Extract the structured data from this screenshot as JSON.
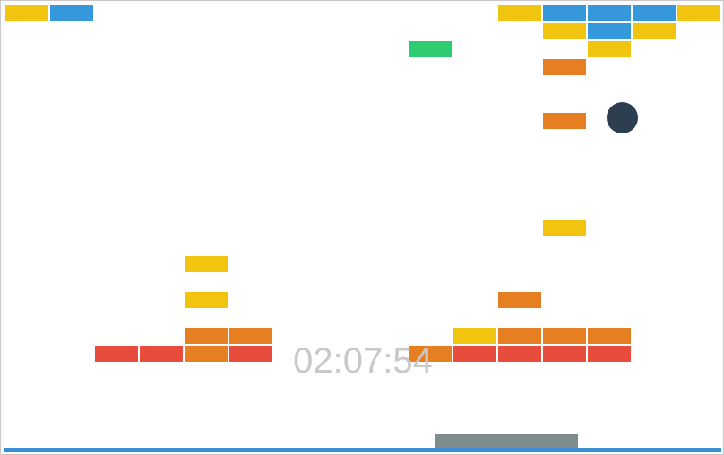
{
  "colors": {
    "yellow": "#f1c40f",
    "blue": "#3498db",
    "green": "#2ecc71",
    "orange": "#e67e22",
    "red": "#e74c3c",
    "ball": "#2c3e50",
    "paddle": "#7f8c8d",
    "floor": "#3b8fd6",
    "timer": "#c9c9c9"
  },
  "timer": "02:07:54",
  "grid": {
    "cols": 16
  },
  "bricks": [
    {
      "row": 0,
      "col": 0,
      "color": "yellow"
    },
    {
      "row": 0,
      "col": 1,
      "color": "blue"
    },
    {
      "row": 0,
      "col": 11,
      "color": "yellow"
    },
    {
      "row": 0,
      "col": 12,
      "color": "blue"
    },
    {
      "row": 0,
      "col": 13,
      "color": "blue"
    },
    {
      "row": 0,
      "col": 14,
      "color": "blue"
    },
    {
      "row": 0,
      "col": 15,
      "color": "yellow"
    },
    {
      "row": 1,
      "col": 12,
      "color": "yellow"
    },
    {
      "row": 1,
      "col": 13,
      "color": "blue"
    },
    {
      "row": 1,
      "col": 14,
      "color": "yellow"
    },
    {
      "row": 2,
      "col": 9,
      "color": "green"
    },
    {
      "row": 2,
      "col": 13,
      "color": "yellow"
    },
    {
      "row": 3,
      "col": 12,
      "color": "orange"
    },
    {
      "row": 6,
      "col": 12,
      "color": "orange"
    },
    {
      "row": 12,
      "col": 12,
      "color": "yellow"
    },
    {
      "row": 14,
      "col": 4,
      "color": "yellow"
    },
    {
      "row": 16,
      "col": 4,
      "color": "yellow"
    },
    {
      "row": 16,
      "col": 11,
      "color": "orange"
    },
    {
      "row": 18,
      "col": 4,
      "color": "orange"
    },
    {
      "row": 18,
      "col": 5,
      "color": "orange"
    },
    {
      "row": 18,
      "col": 10,
      "color": "yellow"
    },
    {
      "row": 18,
      "col": 11,
      "color": "orange"
    },
    {
      "row": 18,
      "col": 12,
      "color": "orange"
    },
    {
      "row": 18,
      "col": 13,
      "color": "orange"
    },
    {
      "row": 19,
      "col": 2,
      "color": "red"
    },
    {
      "row": 19,
      "col": 3,
      "color": "red"
    },
    {
      "row": 19,
      "col": 4,
      "color": "orange"
    },
    {
      "row": 19,
      "col": 5,
      "color": "red"
    },
    {
      "row": 19,
      "col": 9,
      "color": "orange"
    },
    {
      "row": 19,
      "col": 10,
      "color": "red"
    },
    {
      "row": 19,
      "col": 11,
      "color": "red"
    },
    {
      "row": 19,
      "col": 12,
      "color": "red"
    },
    {
      "row": 19,
      "col": 13,
      "color": "red"
    }
  ]
}
